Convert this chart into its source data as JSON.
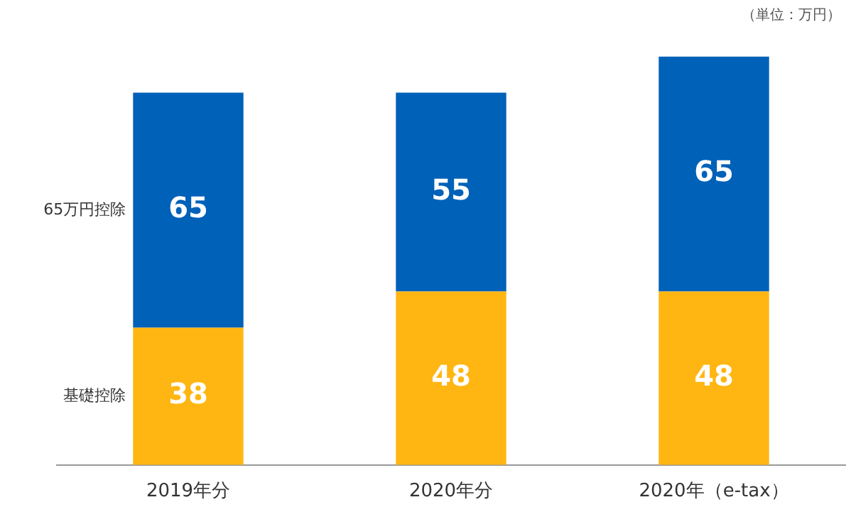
{
  "chart_data": {
    "type": "bar",
    "stacked": true,
    "categories": [
      "2019年分",
      "2020年分",
      "2020年（e-tax）"
    ],
    "series": [
      {
        "name": "基礎控除",
        "color": "#ffb612",
        "values": [
          38,
          48,
          48
        ]
      },
      {
        "name": "65万円控除",
        "color": "#0061b8",
        "values": [
          65,
          55,
          65
        ]
      }
    ],
    "data_labels": true,
    "legend": "left",
    "annotations": [
      "（単位：万円）"
    ]
  }
}
